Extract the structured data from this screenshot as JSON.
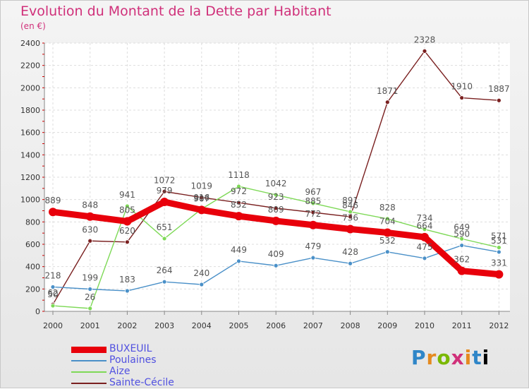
{
  "chart_data": {
    "type": "line",
    "title": "Evolution du Montant de la Dette par Habitant",
    "unit_label": "(en €)",
    "x": [
      "2000",
      "2001",
      "2002",
      "2003",
      "2004",
      "2005",
      "2006",
      "2007",
      "2008",
      "2009",
      "2010",
      "2011",
      "2012"
    ],
    "ylim": [
      0,
      2400
    ],
    "yticks": [
      "0",
      "200",
      "400",
      "600",
      "800",
      "1000",
      "1200",
      "1400",
      "1600",
      "1800",
      "2000",
      "2200",
      "2400"
    ],
    "grid": true,
    "legend_position": "bottom-left",
    "series": [
      {
        "name": "BUXEUIL",
        "color": "#e8000b",
        "values": [
          889,
          848,
          805,
          979,
          907,
          852,
          809,
          772,
          736,
          704,
          664,
          362,
          331
        ],
        "labels": [
          "889",
          "848",
          "805",
          "979",
          "907",
          "852",
          "809",
          "772",
          "736",
          "704",
          "664",
          "362",
          "331"
        ]
      },
      {
        "name": "Poulaines",
        "color": "#4a90c8",
        "values": [
          218,
          199,
          183,
          264,
          240,
          449,
          409,
          479,
          428,
          532,
          475,
          590,
          531
        ],
        "labels": [
          "218",
          "199",
          "183",
          "264",
          "240",
          "449",
          "409",
          "479",
          "428",
          "532",
          "475",
          "590",
          "531"
        ]
      },
      {
        "name": "Aize",
        "color": "#7ed957",
        "values": [
          50,
          26,
          941,
          651,
          916,
          1118,
          1042,
          967,
          891,
          828,
          734,
          649,
          571
        ],
        "labels": [
          "50",
          "26",
          "941",
          "651",
          "916",
          "1118",
          "1042",
          "967",
          "891",
          "828",
          "734",
          "649",
          "571"
        ]
      },
      {
        "name": "Sainte-Cécile",
        "color": "#7a2020",
        "values": [
          62,
          630,
          620,
          1072,
          1019,
          972,
          923,
          885,
          846,
          1871,
          2328,
          1910,
          1887
        ],
        "labels": [
          "62",
          "630",
          "620",
          "1072",
          "1019",
          "972",
          "923",
          "885",
          "846",
          "1871",
          "2328",
          "1910",
          "1887"
        ]
      }
    ]
  },
  "logo": {
    "letters": [
      "P",
      "r",
      "o",
      "x",
      "i",
      "t",
      "i"
    ]
  }
}
